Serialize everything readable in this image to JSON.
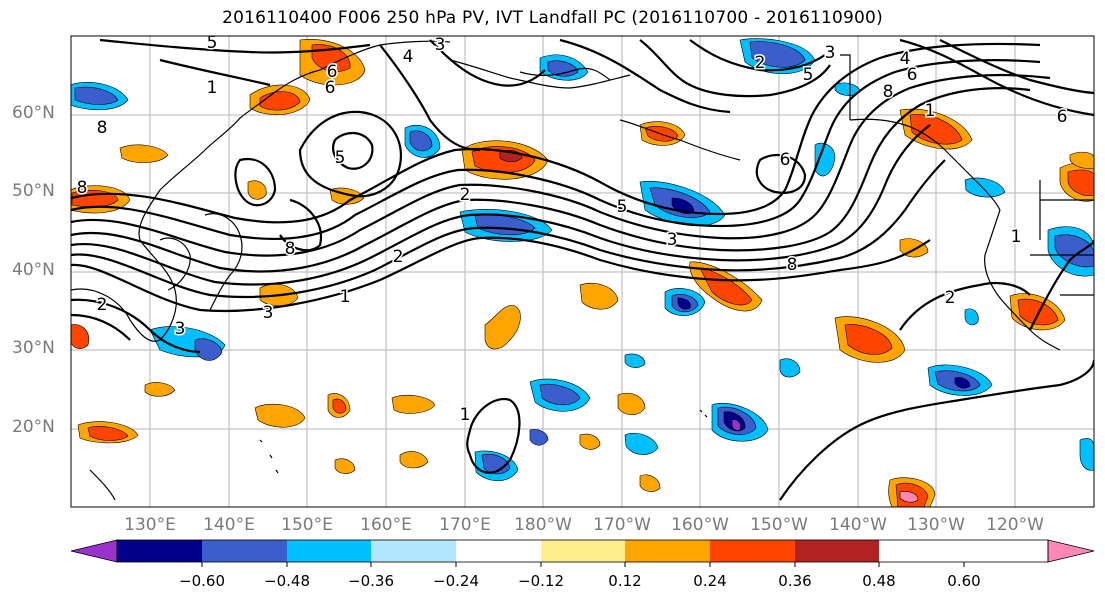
{
  "title": "2016110400 F006 250 hPa PV, IVT Landfall PC (2016110700 - 2016110900)",
  "lat_labels": [
    "60°N",
    "50°N",
    "40°N",
    "30°N",
    "20°N"
  ],
  "lon_labels": [
    "130°E",
    "140°E",
    "150°E",
    "160°E",
    "170°E",
    "180°W",
    "170°W",
    "160°W",
    "150°W",
    "140°W",
    "130°W",
    "120°W"
  ],
  "colorbar": {
    "colors": [
      "#9932cc",
      "#00008b",
      "#3a5fcd",
      "#00bfff",
      "#b2e6ff",
      "#ffffff",
      "#ffee8c",
      "#ffa500",
      "#ff4500",
      "#b22222",
      "#ff88b4"
    ],
    "tick_labels": [
      "−0.60",
      "−0.48",
      "−0.36",
      "−0.24",
      "−0.12",
      "0.12",
      "0.24",
      "0.36",
      "0.48",
      "0.60"
    ]
  },
  "contour_labels": [
    "5",
    "4",
    "3",
    "6",
    "8",
    "1",
    "2",
    "3",
    "5",
    "6",
    "8",
    "6",
    "4",
    "5",
    "8",
    "2",
    "1",
    "3",
    "2",
    "5",
    "6",
    "8",
    "1",
    "2",
    "3",
    "1",
    "8",
    "6",
    "1",
    "2",
    "3"
  ]
}
